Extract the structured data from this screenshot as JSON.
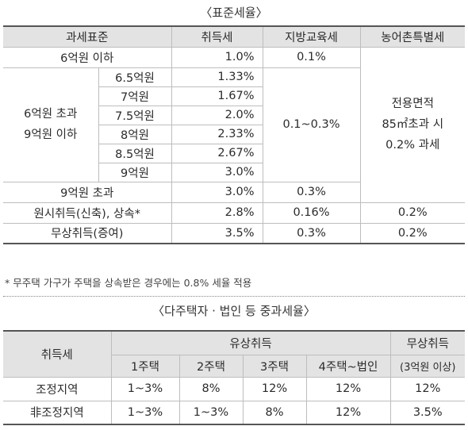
{
  "standard": {
    "caption": "〈표준세율〉",
    "headers": [
      "과세표준",
      "취득세",
      "지방교육세",
      "농어촌특별세"
    ],
    "row_le6": {
      "label": "6억원 이하",
      "acq": "1.0%",
      "edu": "0.1%"
    },
    "mid_label_line1": "6억원 초과",
    "mid_label_line2": "9억원 이하",
    "mid_rows": [
      {
        "sub": "6.5억원",
        "acq": "1.33%"
      },
      {
        "sub": "7억원",
        "acq": "1.67%"
      },
      {
        "sub": "7.5억원",
        "acq": "2.0%"
      },
      {
        "sub": "8억원",
        "acq": "2.33%"
      },
      {
        "sub": "8.5억원",
        "acq": "2.67%"
      },
      {
        "sub": "9억원",
        "acq": "3.0%"
      }
    ],
    "mid_edu": "0.1~0.3%",
    "rural_merged": [
      "전용면적",
      "85㎡초과 시",
      "0.2% 과세"
    ],
    "row_gt9": {
      "label": "9억원 초과",
      "acq": "3.0%",
      "edu": "0.3%"
    },
    "row_original": {
      "label": "원시취득(신축), 상속*",
      "acq": "2.8%",
      "edu": "0.16%",
      "rural": "0.2%"
    },
    "row_gift": {
      "label": "무상취득(증여)",
      "acq": "3.5%",
      "edu": "0.3%",
      "rural": "0.2%"
    },
    "note": "* 무주택 가구가 주택을 상속받은 경우에는 0.8% 세율 적용"
  },
  "heavy": {
    "caption": "〈다주택자 · 법인 등 중과세율〉",
    "header_tax": "취득세",
    "header_paid": "유상취득",
    "header_free": "무상취득",
    "sub_headers": [
      "1주택",
      "2주택",
      "3주택",
      "4주택~법인"
    ],
    "free_sub": "(3억원 이상)",
    "rows": [
      {
        "label": "조정지역",
        "values": [
          "1~3%",
          "8%",
          "12%",
          "12%",
          "12%"
        ]
      },
      {
        "label": "非조정지역",
        "values": [
          "1~3%",
          "1~3%",
          "8%",
          "12%",
          "3.5%"
        ]
      }
    ]
  }
}
